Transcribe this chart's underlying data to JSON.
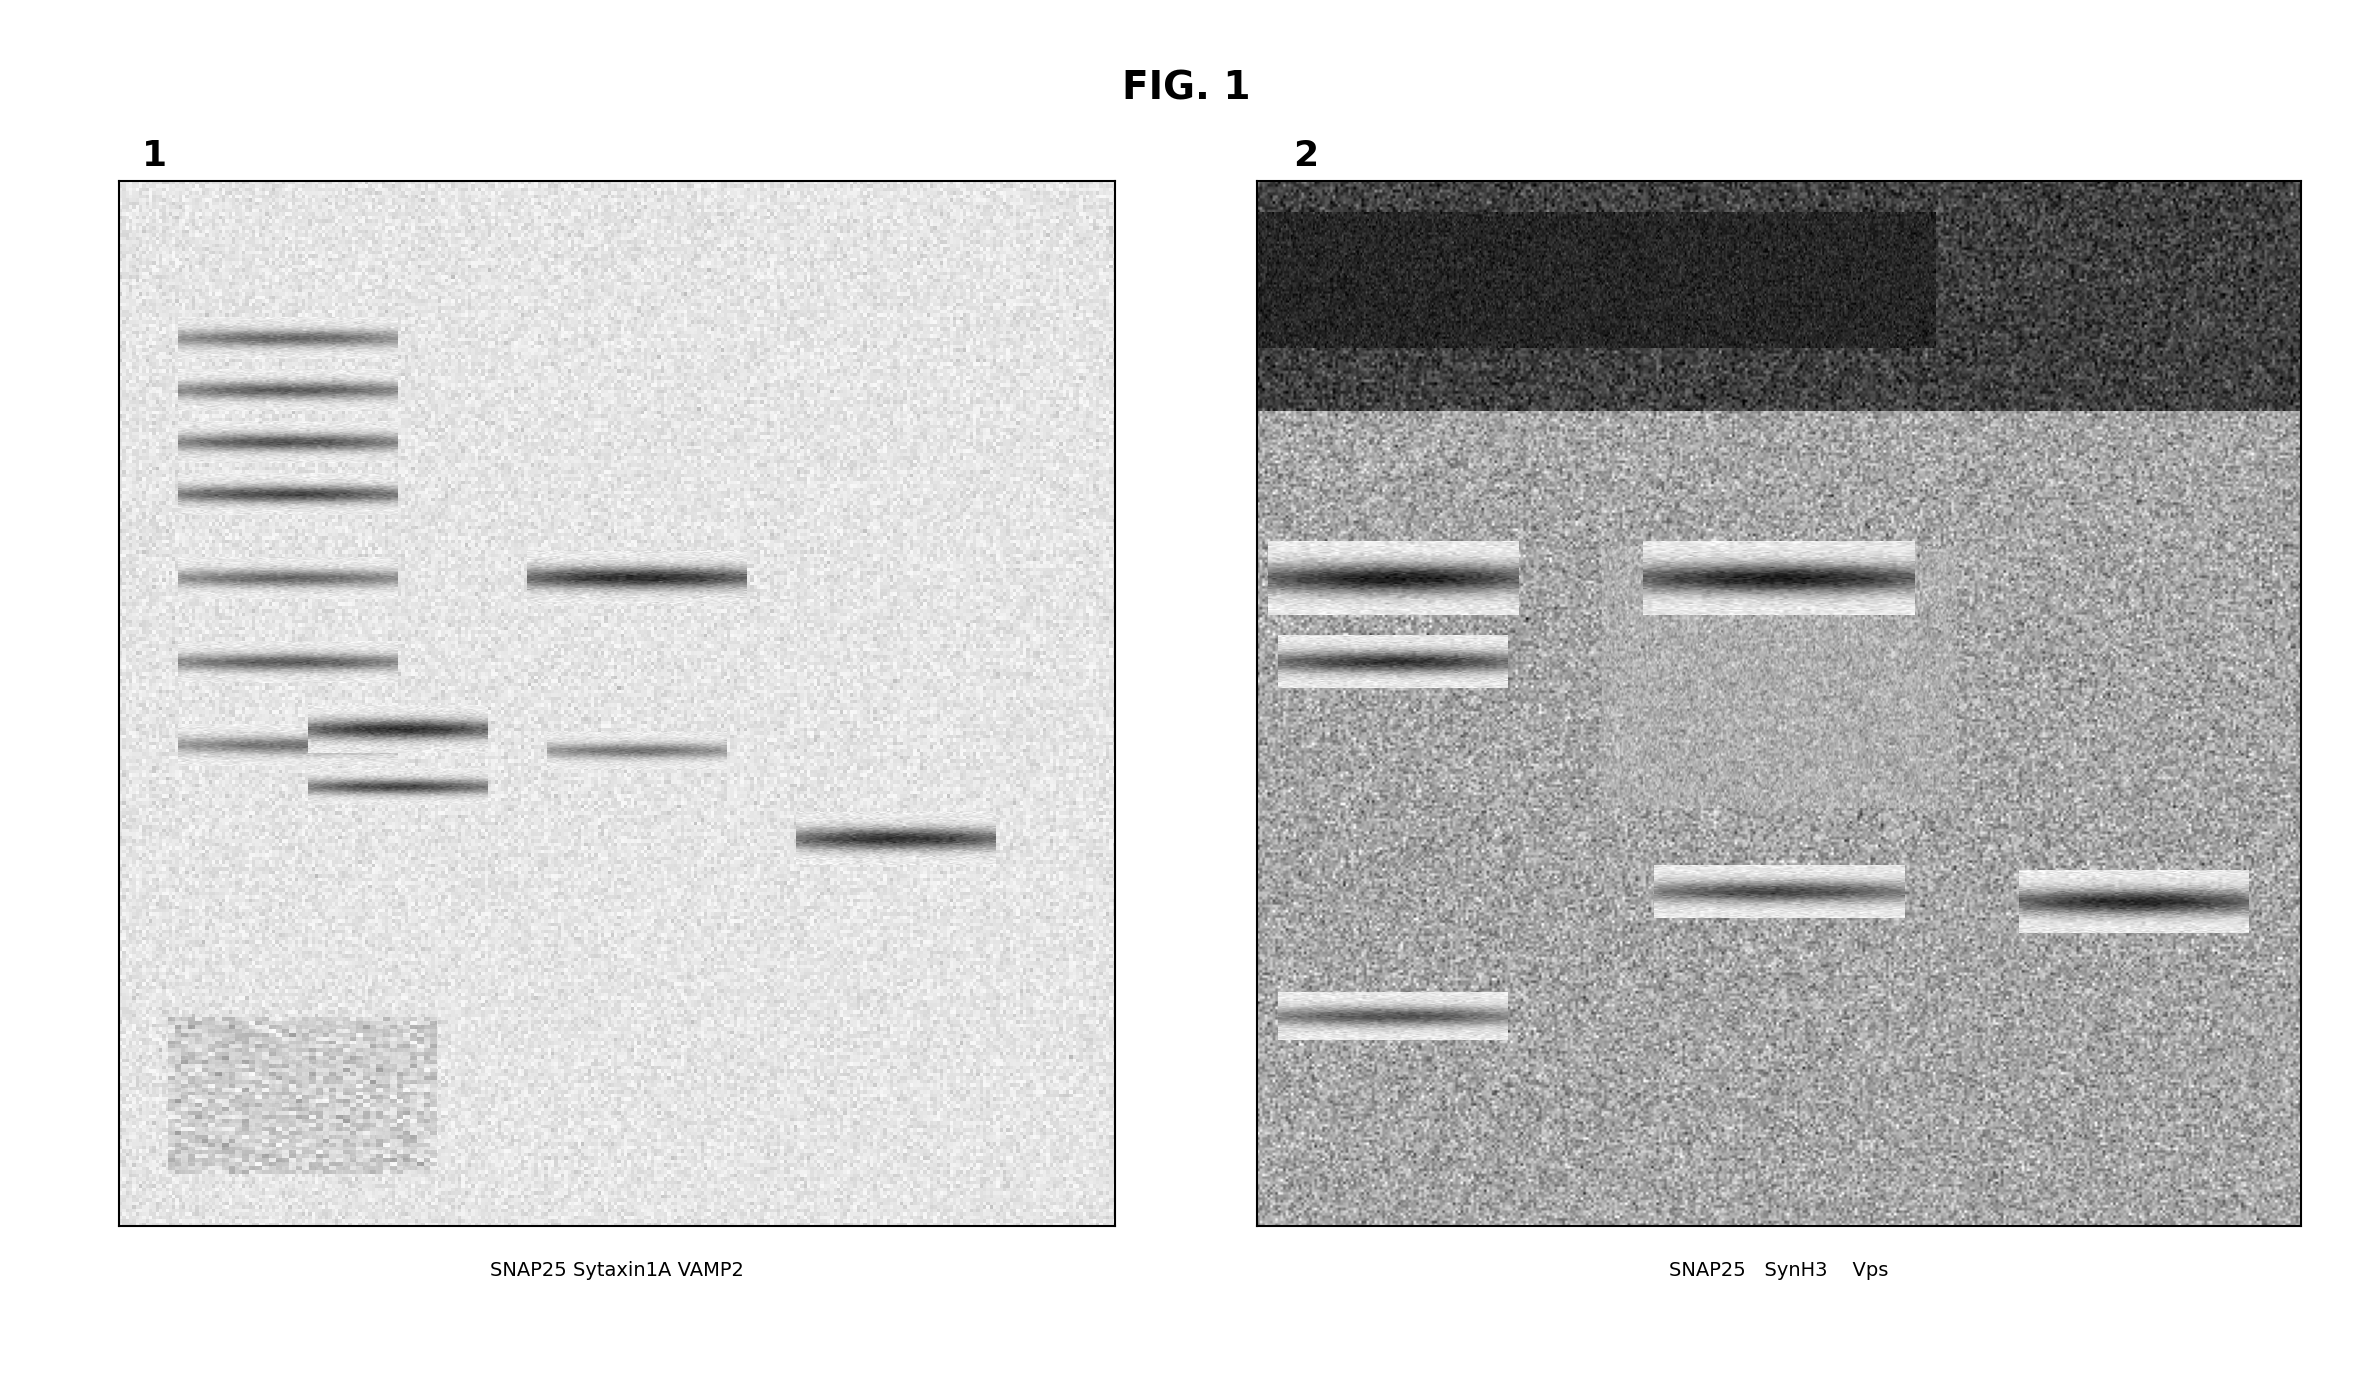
{
  "title": "FIG. 1",
  "title_fontsize": 28,
  "title_font": "Courier New",
  "panel1_label": "1",
  "panel2_label": "2",
  "panel1_xlabel": "SNAP25 Sytaxin1A VAMP2",
  "panel2_xlabel": "SNAP25   SynH3    Vps",
  "background_color": "#ffffff",
  "panel_bg": "#f5f5f5",
  "fig_width": 23.72,
  "fig_height": 13.93
}
